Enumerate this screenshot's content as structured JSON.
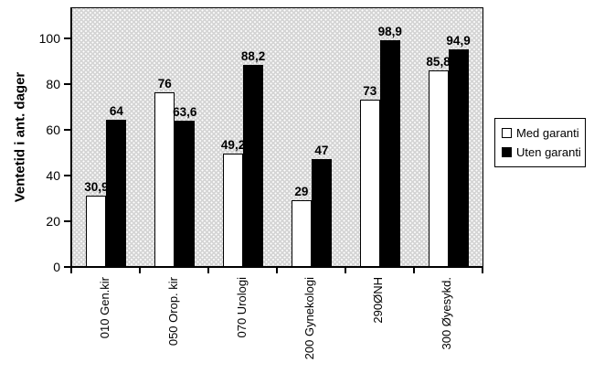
{
  "chart_data": {
    "type": "bar",
    "title": "",
    "ylabel": "Ventetid i ant. dager",
    "xlabel": "",
    "ylim": [
      0,
      113
    ],
    "yticks": [
      0,
      20,
      40,
      60,
      80,
      100
    ],
    "grid": false,
    "legend_position": "right-middle",
    "plot_background": "light gray with white dot pattern",
    "categories": [
      "010 Gen.kir",
      "050 Orop. kir",
      "070 Urologi",
      "200 Gynekologi",
      "290ØNH",
      "300 Øyesykd."
    ],
    "series": [
      {
        "name": "Med garanti",
        "color": "#ffffff",
        "values": [
          30.9,
          76,
          49.2,
          29,
          73,
          85.8
        ],
        "value_labels": [
          "30,9",
          "76",
          "49,2",
          "29",
          "73",
          "85,8"
        ]
      },
      {
        "name": "Uten garanti",
        "color": "#000000",
        "values": [
          64,
          63.6,
          88.2,
          47,
          98.9,
          94.9
        ],
        "value_labels": [
          "64",
          "63,6",
          "88,2",
          "47",
          "98,9",
          "94,9"
        ]
      }
    ]
  },
  "colors": {
    "plot_bg": "#d5d5d5",
    "plot_dots": "#ffffff",
    "axis": "#000000",
    "text": "#000000",
    "legend_bg": "#ffffff"
  }
}
